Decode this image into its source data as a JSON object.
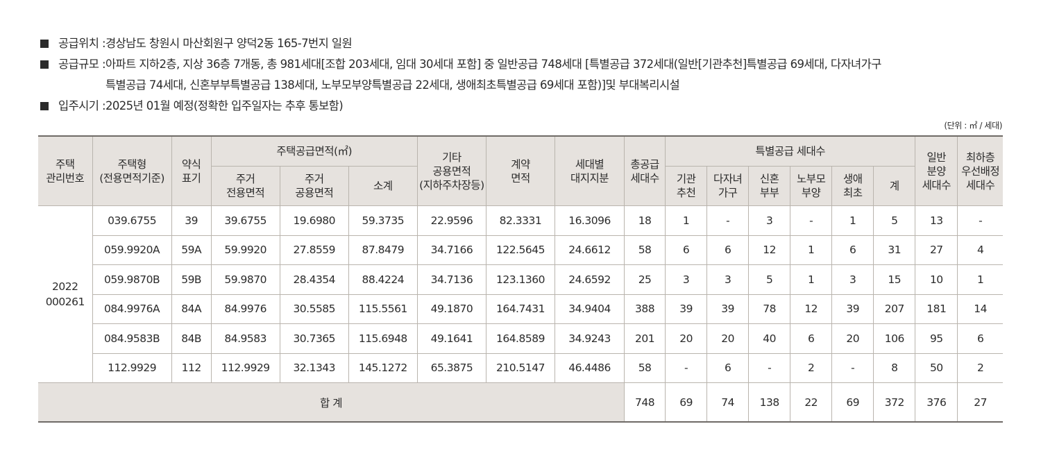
{
  "info": [
    {
      "label": "공급위치 : ",
      "value": "경상남도 창원시 마산회원구 양덕2동 165-7번지 일원"
    },
    {
      "label": "공급규모 : ",
      "value": "아파트 지하2층, 지상 36층 7개동, 총 981세대[조합 203세대, 임대 30세대 포함] 중 일반공급 748세대 [특별공급 372세대(일반[기관추천]특별공급 69세대, 다자녀가구\n특별공급 74세대, 신혼부부특별공급 138세대, 노부모부양특별공급 22세대, 생애최초특별공급 69세대 포함)]및 부대복리시설"
    },
    {
      "label": "입주시기 : ",
      "value": "2025년 01월 예정(정확한 입주일자는 추후 통보함)"
    }
  ],
  "unit_note": "(단위 : ㎡ / 세대)",
  "headers": {
    "mgmt_no": [
      "주택",
      "관리번호"
    ],
    "type": [
      "주택형",
      "(전용면적기준)"
    ],
    "short": [
      "약식",
      "표기"
    ],
    "supply_area": "주택공급면적(㎡)",
    "private_area": [
      "주거",
      "전용면적"
    ],
    "common_area": [
      "주거",
      "공용면적"
    ],
    "subtotal": "소계",
    "other_area": [
      "기타",
      "공용면적",
      "(지하주차장등)"
    ],
    "contract_area": [
      "계약",
      "면적"
    ],
    "land_share": [
      "세대별",
      "대지지분"
    ],
    "total_supply": [
      "총공급",
      "세대수"
    ],
    "special": "특별공급 세대수",
    "special_cols": [
      [
        "기관",
        "추천"
      ],
      [
        "다자녀",
        "가구"
      ],
      [
        "신혼",
        "부부"
      ],
      [
        "노부모",
        "부양"
      ],
      [
        "생애",
        "최초"
      ],
      [
        "계"
      ]
    ],
    "general": [
      "일반",
      "분양",
      "세대수"
    ],
    "lowest_floor": [
      "최하층",
      "우선배정",
      "세대수"
    ]
  },
  "mgmt_no": [
    "2022",
    "000261"
  ],
  "rows": [
    {
      "type": "039.6755",
      "short": "39",
      "private": "39.6755",
      "common": "19.6980",
      "subtotal": "59.3735",
      "other": "22.9596",
      "contract": "82.3331",
      "land": "16.3096",
      "total": "18",
      "inst": "1",
      "multi": "-",
      "newlywed": "3",
      "elderly": "-",
      "first": "1",
      "sp_sum": "5",
      "general": "13",
      "lowest": "-"
    },
    {
      "type": "059.9920A",
      "short": "59A",
      "private": "59.9920",
      "common": "27.8559",
      "subtotal": "87.8479",
      "other": "34.7166",
      "contract": "122.5645",
      "land": "24.6612",
      "total": "58",
      "inst": "6",
      "multi": "6",
      "newlywed": "12",
      "elderly": "1",
      "first": "6",
      "sp_sum": "31",
      "general": "27",
      "lowest": "4"
    },
    {
      "type": "059.9870B",
      "short": "59B",
      "private": "59.9870",
      "common": "28.4354",
      "subtotal": "88.4224",
      "other": "34.7136",
      "contract": "123.1360",
      "land": "24.6592",
      "total": "25",
      "inst": "3",
      "multi": "3",
      "newlywed": "5",
      "elderly": "1",
      "first": "3",
      "sp_sum": "15",
      "general": "10",
      "lowest": "1"
    },
    {
      "type": "084.9976A",
      "short": "84A",
      "private": "84.9976",
      "common": "30.5585",
      "subtotal": "115.5561",
      "other": "49.1870",
      "contract": "164.7431",
      "land": "34.9404",
      "total": "388",
      "inst": "39",
      "multi": "39",
      "newlywed": "78",
      "elderly": "12",
      "first": "39",
      "sp_sum": "207",
      "general": "181",
      "lowest": "14"
    },
    {
      "type": "084.9583B",
      "short": "84B",
      "private": "84.9583",
      "common": "30.7365",
      "subtotal": "115.6948",
      "other": "49.1641",
      "contract": "164.8589",
      "land": "34.9243",
      "total": "201",
      "inst": "20",
      "multi": "20",
      "newlywed": "40",
      "elderly": "6",
      "first": "20",
      "sp_sum": "106",
      "general": "95",
      "lowest": "6"
    },
    {
      "type": "112.9929",
      "short": "112",
      "private": "112.9929",
      "common": "32.1343",
      "subtotal": "145.1272",
      "other": "65.3875",
      "contract": "210.5147",
      "land": "46.4486",
      "total": "58",
      "inst": "-",
      "multi": "6",
      "newlywed": "-",
      "elderly": "2",
      "first": "-",
      "sp_sum": "8",
      "general": "50",
      "lowest": "2"
    }
  ],
  "total_row": {
    "label": "합 계",
    "total": "748",
    "inst": "69",
    "multi": "74",
    "newlywed": "138",
    "elderly": "22",
    "first": "69",
    "sp_sum": "372",
    "general": "376",
    "lowest": "27"
  }
}
